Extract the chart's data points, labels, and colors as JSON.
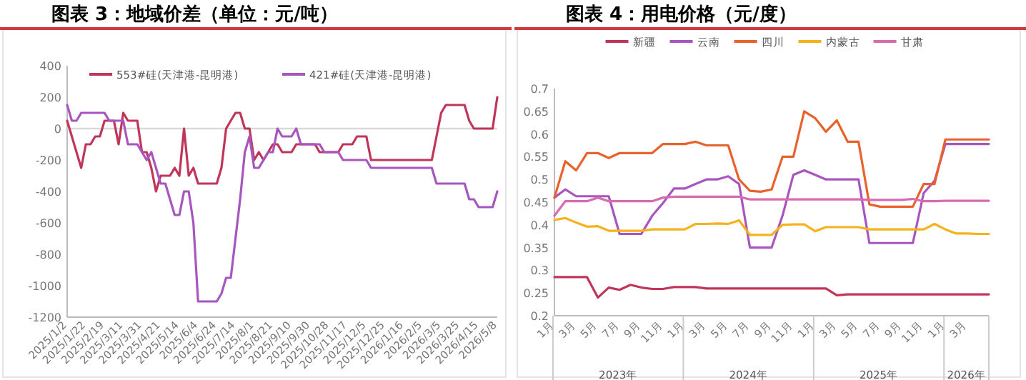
{
  "chart_data": [
    {
      "type": "line",
      "title": "图表 3：地域价差（单位：元/吨）",
      "legend": "top",
      "ylim": [
        -1200,
        400
      ],
      "yticks": [
        -1200,
        -1000,
        -800,
        -600,
        -400,
        -200,
        0,
        200,
        400
      ],
      "ref_lines": [
        {
          "axis": "y",
          "value": 0,
          "color": "#d9d9d9"
        }
      ],
      "categories": [
        "2025/1/2",
        null,
        null,
        null,
        "2025/1/22",
        null,
        null,
        null,
        "2025/2/19",
        null,
        null,
        null,
        "2025/3/11",
        null,
        null,
        null,
        "2025/3/31",
        null,
        null,
        null,
        "2025/4/21",
        null,
        null,
        null,
        "2025/5/14",
        null,
        null,
        null,
        "2025/6/4",
        null,
        null,
        null,
        "2025/6/24",
        null,
        null,
        null,
        "2025/7/14",
        null,
        null,
        null,
        "2025/8/1",
        null,
        null,
        null,
        "2025/8/21",
        null,
        null,
        null,
        "2025/9/10",
        null,
        null,
        null,
        "2025/9/30",
        null,
        null,
        null,
        "2025/10/28",
        null,
        null,
        null,
        "2025/11/17",
        null,
        null,
        null,
        "2025/12/5",
        null,
        null,
        null,
        "2025/12/25",
        null,
        null,
        null,
        "2026/1/16",
        null,
        null,
        null,
        "2026/2/5",
        null,
        null,
        null,
        "2026/3/5",
        null,
        null,
        null,
        "2026/3/25",
        null,
        null,
        null,
        "2026/4/15",
        null,
        null,
        null,
        "2026/5/8"
      ],
      "series": [
        {
          "name": "553#硅(天津港-昆明港)",
          "color": "#c0365a",
          "values": [
            50,
            -50,
            -150,
            -250,
            -100,
            -100,
            -50,
            -50,
            50,
            50,
            50,
            -100,
            100,
            50,
            50,
            50,
            -150,
            -150,
            -250,
            -400,
            -300,
            -300,
            -300,
            -250,
            -300,
            0,
            -300,
            -250,
            -350,
            -350,
            -350,
            -350,
            -350,
            -250,
            0,
            50,
            100,
            100,
            0,
            0,
            -200,
            -150,
            -200,
            -150,
            -100,
            -100,
            -150,
            -150,
            -150,
            -100,
            -100,
            -100,
            -100,
            -100,
            -150,
            -150,
            -150,
            -150,
            -150,
            -100,
            -100,
            -100,
            -50,
            -50,
            -50,
            -200,
            -200,
            -200,
            -200,
            -200,
            -200,
            -200,
            -200,
            -200,
            -200,
            -200,
            -200,
            -200,
            -200,
            -50,
            100,
            150,
            150,
            150,
            150,
            150,
            50,
            0,
            0,
            0,
            0,
            0,
            200
          ]
        },
        {
          "name": "421#硅(天津港-昆明港)",
          "color": "#a855c0",
          "values": [
            150,
            50,
            50,
            100,
            100,
            100,
            100,
            100,
            100,
            50,
            50,
            50,
            50,
            -100,
            -100,
            -100,
            -150,
            -200,
            -150,
            -250,
            -350,
            -350,
            -450,
            -550,
            -550,
            -400,
            -400,
            -600,
            -1100,
            -1100,
            -1100,
            -1100,
            -1100,
            -1050,
            -950,
            -950,
            -700,
            -450,
            -150,
            -50,
            -250,
            -250,
            -200,
            -150,
            -150,
            0,
            -50,
            -50,
            -50,
            0,
            -100,
            -100,
            -100,
            -100,
            -100,
            -150,
            -150,
            -150,
            -150,
            -200,
            -200,
            -200,
            -200,
            -200,
            -200,
            -250,
            -250,
            -250,
            -250,
            -250,
            -250,
            -250,
            -250,
            -250,
            -250,
            -250,
            -250,
            -250,
            -250,
            -350,
            -350,
            -350,
            -350,
            -350,
            -350,
            -350,
            -450,
            -450,
            -500,
            -500,
            -500,
            -500,
            -400
          ]
        }
      ]
    },
    {
      "type": "line",
      "title": "图表 4：用电价格（元/度）",
      "legend": "top",
      "ylim": [
        0.2,
        0.7
      ],
      "yticks": [
        0.2,
        0.25,
        0.3,
        0.35,
        0.4,
        0.45,
        0.5,
        0.55,
        0.6,
        0.65,
        0.7
      ],
      "annotations": [
        "2023年",
        "2024年",
        "2025年",
        "2026年"
      ],
      "categories": [
        "1月",
        null,
        "3月",
        null,
        "5月",
        null,
        "7月",
        null,
        "9月",
        null,
        "11月",
        null,
        "1月",
        null,
        "3月",
        null,
        "5月",
        null,
        "7月",
        null,
        "9月",
        null,
        "11月",
        null,
        "1月",
        null,
        "3月",
        null,
        "5月",
        null,
        "7月",
        null,
        "9月",
        null,
        "11月",
        null,
        "1月",
        null,
        "3月",
        null,
        null
      ],
      "series": [
        {
          "name": "新疆",
          "color": "#c0365a",
          "values": [
            0.285,
            0.285,
            0.285,
            0.285,
            0.24,
            0.262,
            0.257,
            0.268,
            0.262,
            0.259,
            0.259,
            0.263,
            0.263,
            0.263,
            0.26,
            0.26,
            0.26,
            0.26,
            0.26,
            0.26,
            0.26,
            0.26,
            0.26,
            0.26,
            0.26,
            0.26,
            0.245,
            0.247,
            0.247,
            0.247,
            0.247,
            0.247,
            0.247,
            0.247,
            0.247,
            0.247,
            0.247,
            0.247,
            0.247,
            0.247,
            0.247
          ]
        },
        {
          "name": "云南",
          "color": "#a855c0",
          "values": [
            0.46,
            0.478,
            0.463,
            0.463,
            0.463,
            0.463,
            0.38,
            0.38,
            0.38,
            0.42,
            0.448,
            0.48,
            0.48,
            0.49,
            0.5,
            0.5,
            0.507,
            0.49,
            0.35,
            0.35,
            0.35,
            0.42,
            0.51,
            0.52,
            0.51,
            0.5,
            0.5,
            0.5,
            0.5,
            0.36,
            0.36,
            0.36,
            0.36,
            0.36,
            0.47,
            0.497,
            0.578,
            0.578,
            0.578,
            0.578,
            0.578
          ]
        },
        {
          "name": "四川",
          "color": "#e8622c",
          "values": [
            0.46,
            0.54,
            0.52,
            0.558,
            0.558,
            0.547,
            0.558,
            0.558,
            0.558,
            0.558,
            0.578,
            0.578,
            0.578,
            0.583,
            0.575,
            0.575,
            0.575,
            0.5,
            0.475,
            0.473,
            0.478,
            0.55,
            0.55,
            0.65,
            0.635,
            0.605,
            0.63,
            0.583,
            0.583,
            0.445,
            0.44,
            0.44,
            0.44,
            0.44,
            0.49,
            0.49,
            0.588,
            0.588,
            0.588,
            0.588,
            0.588
          ]
        },
        {
          "name": "内蒙古",
          "color": "#f5b21d",
          "values": [
            0.411,
            0.415,
            0.405,
            0.396,
            0.397,
            0.387,
            0.387,
            0.387,
            0.387,
            0.39,
            0.39,
            0.39,
            0.39,
            0.402,
            0.402,
            0.403,
            0.402,
            0.41,
            0.378,
            0.378,
            0.378,
            0.4,
            0.401,
            0.401,
            0.386,
            0.395,
            0.395,
            0.395,
            0.395,
            0.39,
            0.39,
            0.39,
            0.39,
            0.39,
            0.39,
            0.402,
            0.39,
            0.381,
            0.381,
            0.38,
            0.38
          ]
        },
        {
          "name": "甘肃",
          "color": "#d86ab0",
          "values": [
            0.42,
            0.452,
            0.452,
            0.452,
            0.46,
            0.452,
            0.452,
            0.452,
            0.452,
            0.452,
            0.46,
            0.462,
            0.462,
            0.462,
            0.462,
            0.462,
            0.462,
            0.462,
            0.456,
            0.456,
            0.456,
            0.456,
            0.456,
            0.456,
            0.456,
            0.456,
            0.456,
            0.456,
            0.456,
            0.455,
            0.455,
            0.455,
            0.455,
            0.457,
            0.452,
            0.452,
            0.453,
            0.453,
            0.453,
            0.453,
            0.453
          ]
        }
      ]
    }
  ]
}
